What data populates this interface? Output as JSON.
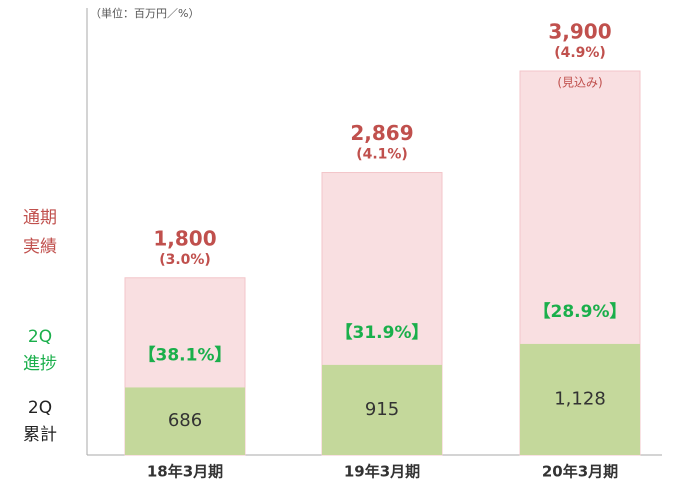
{
  "chart_data": {
    "type": "bar",
    "unit_note": "（単位：百万円／%）",
    "categories": [
      "18年3月期",
      "19年3月期",
      "20年3月期"
    ],
    "series": [
      {
        "name": "通期実績",
        "color": "#f9dfe1",
        "values": [
          1800,
          2869,
          3900
        ],
        "value_labels": [
          "1,800",
          "2,869",
          "3,900"
        ]
      },
      {
        "name": "2Q累計",
        "color": "#c4d89b",
        "values": [
          686,
          915,
          1128
        ],
        "value_labels": [
          "686",
          "915",
          "1,128"
        ]
      }
    ],
    "margin_labels": [
      "(3.0%)",
      "(4.1%)",
      "(4.9%)"
    ],
    "forecast_note": "(見込み)",
    "progress_labels": [
      "【38.1%】",
      "【31.9%】",
      "【28.9%】"
    ],
    "row_labels": [
      [
        "通期",
        "実績"
      ],
      [
        "2Q",
        "進捗"
      ],
      [
        "2Q",
        "累計"
      ]
    ]
  }
}
